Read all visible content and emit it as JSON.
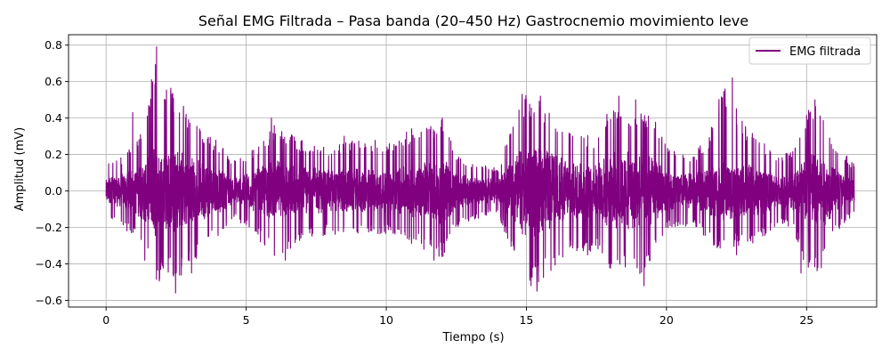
{
  "chart_data": {
    "type": "line",
    "title": "Señal EMG Filtrada – Pasa banda (20–450 Hz) Gastrocnemio movimiento leve",
    "xlabel": "Tiempo (s)",
    "ylabel": "Amplitud (mV)",
    "xlim": [
      -1.34,
      27.5
    ],
    "ylim": [
      -0.637,
      0.857
    ],
    "xticks": [
      0,
      5,
      10,
      15,
      20,
      25
    ],
    "xtick_labels": [
      "0",
      "5",
      "10",
      "15",
      "20",
      "25"
    ],
    "yticks": [
      -0.6,
      -0.4,
      -0.2,
      0.0,
      0.2,
      0.4,
      0.6,
      0.8
    ],
    "ytick_labels": [
      "−0.6",
      "−0.4",
      "−0.2",
      "0.0",
      "0.2",
      "0.4",
      "0.6",
      "0.8"
    ],
    "grid": true,
    "legend_position": "top-right",
    "series": [
      {
        "name": "EMG filtrada",
        "color": "#800080",
        "x_range": [
          0,
          26.7
        ],
        "envelope": {
          "t": [
            0.0,
            0.5,
            1.0,
            1.5,
            1.8,
            2.0,
            2.5,
            3.0,
            3.5,
            4.0,
            4.5,
            5.0,
            5.5,
            6.0,
            7.0,
            8.0,
            9.0,
            10.0,
            11.0,
            12.0,
            12.5,
            13.0,
            14.0,
            14.5,
            15.0,
            15.5,
            16.0,
            16.5,
            17.0,
            17.5,
            18.0,
            18.5,
            19.0,
            19.5,
            20.0,
            20.5,
            21.0,
            21.5,
            22.0,
            22.5,
            23.0,
            23.5,
            24.0,
            24.5,
            25.0,
            25.5,
            26.0,
            26.7
          ],
          "upper": [
            0.17,
            0.18,
            0.27,
            0.45,
            0.79,
            0.6,
            0.55,
            0.4,
            0.33,
            0.28,
            0.16,
            0.21,
            0.26,
            0.36,
            0.28,
            0.24,
            0.3,
            0.27,
            0.35,
            0.4,
            0.2,
            0.16,
            0.13,
            0.4,
            0.53,
            0.52,
            0.43,
            0.34,
            0.31,
            0.3,
            0.52,
            0.46,
            0.42,
            0.44,
            0.25,
            0.2,
            0.21,
            0.3,
            0.62,
            0.45,
            0.33,
            0.27,
            0.2,
            0.22,
            0.45,
            0.5,
            0.27,
            0.15
          ],
          "lower": [
            -0.15,
            -0.19,
            -0.25,
            -0.38,
            -0.56,
            -0.45,
            -0.5,
            -0.42,
            -0.32,
            -0.26,
            -0.15,
            -0.2,
            -0.28,
            -0.38,
            -0.28,
            -0.24,
            -0.25,
            -0.24,
            -0.3,
            -0.38,
            -0.2,
            -0.16,
            -0.13,
            -0.35,
            -0.55,
            -0.5,
            -0.42,
            -0.34,
            -0.38,
            -0.32,
            -0.45,
            -0.43,
            -0.47,
            -0.38,
            -0.22,
            -0.19,
            -0.2,
            -0.27,
            -0.35,
            -0.3,
            -0.3,
            -0.26,
            -0.17,
            -0.21,
            -0.43,
            -0.45,
            -0.25,
            -0.12
          ]
        },
        "spikes": [
          [
            1.8,
            0.79
          ],
          [
            1.62,
            0.61
          ],
          [
            2.35,
            0.53
          ],
          [
            2.48,
            -0.56
          ],
          [
            2.0,
            -0.41
          ],
          [
            3.05,
            -0.45
          ],
          [
            1.38,
            -0.38
          ],
          [
            0.95,
            0.43
          ],
          [
            5.9,
            0.4
          ],
          [
            15.5,
            0.52
          ],
          [
            15.38,
            -0.55
          ],
          [
            14.85,
            0.53
          ],
          [
            18.3,
            0.52
          ],
          [
            18.9,
            0.5
          ],
          [
            19.2,
            -0.52
          ],
          [
            22.35,
            0.62
          ],
          [
            22.5,
            -0.35
          ],
          [
            25.3,
            0.5
          ],
          [
            24.8,
            -0.45
          ],
          [
            25.4,
            -0.42
          ],
          [
            12.0,
            0.4
          ],
          [
            11.7,
            -0.38
          ],
          [
            8.5,
            0.3
          ],
          [
            6.4,
            -0.38
          ]
        ]
      }
    ]
  }
}
